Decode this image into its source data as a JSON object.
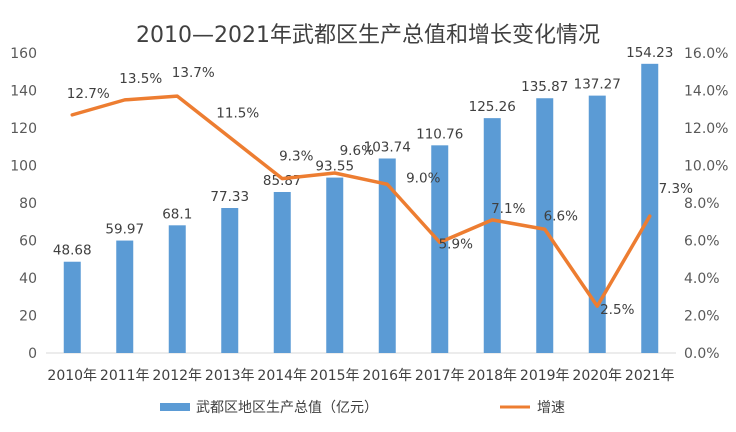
{
  "chart_data": {
    "type": "bar",
    "title": "2010—2021年武都区生产总值和增长变化情况",
    "categories": [
      "2010年",
      "2011年",
      "2012年",
      "2013年",
      "2014年",
      "2015年",
      "2016年",
      "2017年",
      "2018年",
      "2019年",
      "2020年",
      "2021年"
    ],
    "series": [
      {
        "name": "武都区地区生产总值（亿元）",
        "type": "bar",
        "axis": "left",
        "color": "#5b9bd5",
        "values": [
          48.68,
          59.97,
          68.1,
          77.33,
          85.87,
          93.55,
          103.74,
          110.76,
          125.26,
          135.87,
          137.27,
          154.23
        ],
        "labels": [
          "48.68",
          "59.97",
          "68.1",
          "77.33",
          "85.87",
          "93.55",
          "103.74",
          "110.76",
          "125.26",
          "135.87",
          "137.27",
          "154.23"
        ]
      },
      {
        "name": "增速",
        "type": "line",
        "axis": "right",
        "color": "#ed7d31",
        "values": [
          12.7,
          13.5,
          13.7,
          11.5,
          9.3,
          9.6,
          9.0,
          5.9,
          7.1,
          6.6,
          2.5,
          7.3
        ],
        "labels": [
          "12.7%",
          "13.5%",
          "13.7%",
          "11.5%",
          "9.3%",
          "9.6%",
          "9.0%",
          "5.9%",
          "7.1%",
          "6.6%",
          "2.5%",
          "7.3%"
        ]
      }
    ],
    "y_left": {
      "lim": [
        0,
        160
      ],
      "ticks": [
        "0",
        "20",
        "40",
        "60",
        "80",
        "100",
        "120",
        "140",
        "160"
      ]
    },
    "y_right": {
      "lim": [
        0,
        16
      ],
      "ticks": [
        "0.0%",
        "2.0%",
        "4.0%",
        "6.0%",
        "8.0%",
        "10.0%",
        "12.0%",
        "14.0%",
        "16.0%"
      ]
    },
    "grid": false,
    "legend": "bottom"
  }
}
